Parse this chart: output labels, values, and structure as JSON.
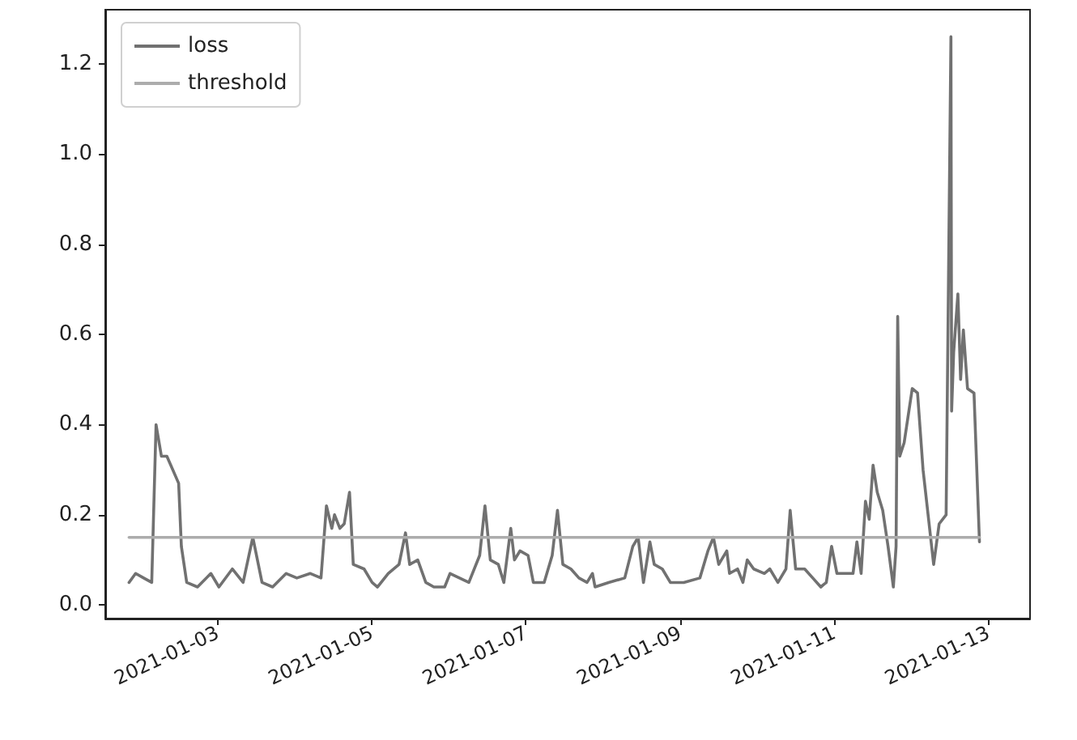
{
  "chart_data": {
    "type": "line",
    "x": [
      "2021-01-01T20:24",
      "2021-01-01T22:27",
      "2021-01-02T00:57",
      "2021-01-02T03:28",
      "2021-01-02T04:49",
      "2021-01-02T06:29",
      "2021-01-02T08:11",
      "2021-01-02T11:51",
      "2021-01-02T12:42",
      "2021-01-02T14:22",
      "2021-01-02T17:43",
      "2021-01-02T21:53",
      "2021-01-03T00:24",
      "2021-01-03T04:34",
      "2021-01-03T07:56",
      "2021-01-03T10:57",
      "2021-01-03T13:49",
      "2021-01-03T17:07",
      "2021-01-03T21:20",
      "2021-01-04T00:40",
      "2021-01-04T04:52",
      "2021-01-04T08:11",
      "2021-01-04T09:53",
      "2021-01-04T11:33",
      "2021-01-04T12:24",
      "2021-01-04T14:04",
      "2021-01-04T15:25",
      "2021-01-04T17:04",
      "2021-01-04T18:14",
      "2021-01-04T21:36",
      "2021-01-05T00:06",
      "2021-01-05T01:46",
      "2021-01-05T05:07",
      "2021-01-05T08:29",
      "2021-01-05T10:30",
      "2021-01-05T11:48",
      "2021-01-05T14:19",
      "2021-01-05T16:49",
      "2021-01-05T19:20",
      "2021-01-05T22:42",
      "2021-01-06T00:22",
      "2021-01-06T06:14",
      "2021-01-06T09:36",
      "2021-01-06T11:15",
      "2021-01-06T12:55",
      "2021-01-06T15:25",
      "2021-01-06T17:08",
      "2021-01-06T19:17",
      "2021-01-06T20:26",
      "2021-01-06T22:09",
      "2021-01-07T00:40",
      "2021-01-07T02:19",
      "2021-01-07T05:41",
      "2021-01-07T08:11",
      "2021-01-07T09:50",
      "2021-01-07T11:30",
      "2021-01-07T14:01",
      "2021-01-07T16:31",
      "2021-01-07T19:02",
      "2021-01-07T20:44",
      "2021-01-07T21:32",
      "2021-01-08T01:46",
      "2021-01-08T06:47",
      "2021-01-08T09:17",
      "2021-01-08T10:57",
      "2021-01-08T12:37",
      "2021-01-08T14:37",
      "2021-01-08T15:58",
      "2021-01-08T18:29",
      "2021-01-08T20:59",
      "2021-01-09T01:10",
      "2021-01-09T06:11",
      "2021-01-09T08:41",
      "2021-01-09T10:24",
      "2021-01-09T12:03",
      "2021-01-09T14:34",
      "2021-01-09T15:25",
      "2021-01-09T17:55",
      "2021-01-09T19:35",
      "2021-01-09T20:56",
      "2021-01-09T22:57",
      "2021-01-10T02:16",
      "2021-01-10T03:58",
      "2021-01-10T06:29",
      "2021-01-10T08:59",
      "2021-01-10T10:18",
      "2021-01-10T12:00",
      "2021-01-10T14:49",
      "2021-01-10T17:20",
      "2021-01-10T19:50",
      "2021-01-10T21:33",
      "2021-01-10T23:12",
      "2021-01-11T00:52",
      "2021-01-11T05:53",
      "2021-01-11T07:05",
      "2021-01-11T08:24",
      "2021-01-11T09:45",
      "2021-01-11T10:55",
      "2021-01-11T12:07",
      "2021-01-11T13:25",
      "2021-01-11T15:07",
      "2021-01-11T16:47",
      "2021-01-11T18:26",
      "2021-01-11T19:17",
      "2021-01-11T19:47",
      "2021-01-11T20:26",
      "2021-01-11T21:48",
      "2021-01-12T00:19",
      "2021-01-12T01:58",
      "2021-01-12T03:41",
      "2021-01-12T06:59",
      "2021-01-12T08:42",
      "2021-01-12T10:52",
      "2021-01-12T12:22",
      "2021-01-12T12:35",
      "2021-01-12T13:13",
      "2021-01-12T14:32",
      "2021-01-12T15:23",
      "2021-01-12T16:14",
      "2021-01-12T17:32",
      "2021-01-12T19:33",
      "2021-01-12T21:15"
    ],
    "series": [
      {
        "name": "loss",
        "color": "#717171",
        "values": [
          0.05,
          0.07,
          0.06,
          0.05,
          0.4,
          0.33,
          0.33,
          0.27,
          0.13,
          0.05,
          0.04,
          0.07,
          0.04,
          0.08,
          0.05,
          0.15,
          0.05,
          0.04,
          0.07,
          0.06,
          0.07,
          0.06,
          0.22,
          0.17,
          0.2,
          0.17,
          0.18,
          0.25,
          0.09,
          0.08,
          0.05,
          0.04,
          0.07,
          0.09,
          0.16,
          0.09,
          0.1,
          0.05,
          0.04,
          0.04,
          0.07,
          0.05,
          0.11,
          0.22,
          0.1,
          0.09,
          0.05,
          0.17,
          0.1,
          0.12,
          0.11,
          0.05,
          0.05,
          0.11,
          0.21,
          0.09,
          0.08,
          0.06,
          0.05,
          0.07,
          0.04,
          0.05,
          0.06,
          0.13,
          0.15,
          0.05,
          0.14,
          0.09,
          0.08,
          0.05,
          0.05,
          0.06,
          0.12,
          0.15,
          0.09,
          0.12,
          0.07,
          0.08,
          0.05,
          0.1,
          0.08,
          0.07,
          0.08,
          0.05,
          0.08,
          0.21,
          0.08,
          0.08,
          0.06,
          0.04,
          0.05,
          0.13,
          0.07,
          0.07,
          0.14,
          0.07,
          0.23,
          0.19,
          0.31,
          0.25,
          0.21,
          0.13,
          0.04,
          0.13,
          0.64,
          0.33,
          0.36,
          0.48,
          0.47,
          0.3,
          0.09,
          0.18,
          0.2,
          1.26,
          0.43,
          0.56,
          0.69,
          0.5,
          0.61,
          0.48,
          0.47,
          0.14
        ]
      },
      {
        "name": "threshold",
        "color": "#acacac",
        "x": [
          "2021-01-01T20:24",
          "2021-01-12T21:15"
        ],
        "values": [
          0.15,
          0.15
        ]
      }
    ],
    "xlim": [
      "2021-01-01T13:00",
      "2021-01-13T13:00"
    ],
    "xticks": [
      "2021-01-03",
      "2021-01-05",
      "2021-01-07",
      "2021-01-09",
      "2021-01-11",
      "2021-01-13"
    ],
    "ylim": [
      -0.03,
      1.32
    ],
    "yticks": [
      {
        "value": 0,
        "label": "0.0"
      },
      {
        "value": 0.2,
        "label": "0.2"
      },
      {
        "value": 0.4,
        "label": "0.4"
      },
      {
        "value": 0.6,
        "label": "0.6"
      },
      {
        "value": 0.8,
        "label": "0.8"
      },
      {
        "value": 1,
        "label": "1.0"
      },
      {
        "value": 1.2,
        "label": "1.2"
      }
    ],
    "legend": "top left",
    "grid": false,
    "marker": "none",
    "line_style": "solid"
  }
}
